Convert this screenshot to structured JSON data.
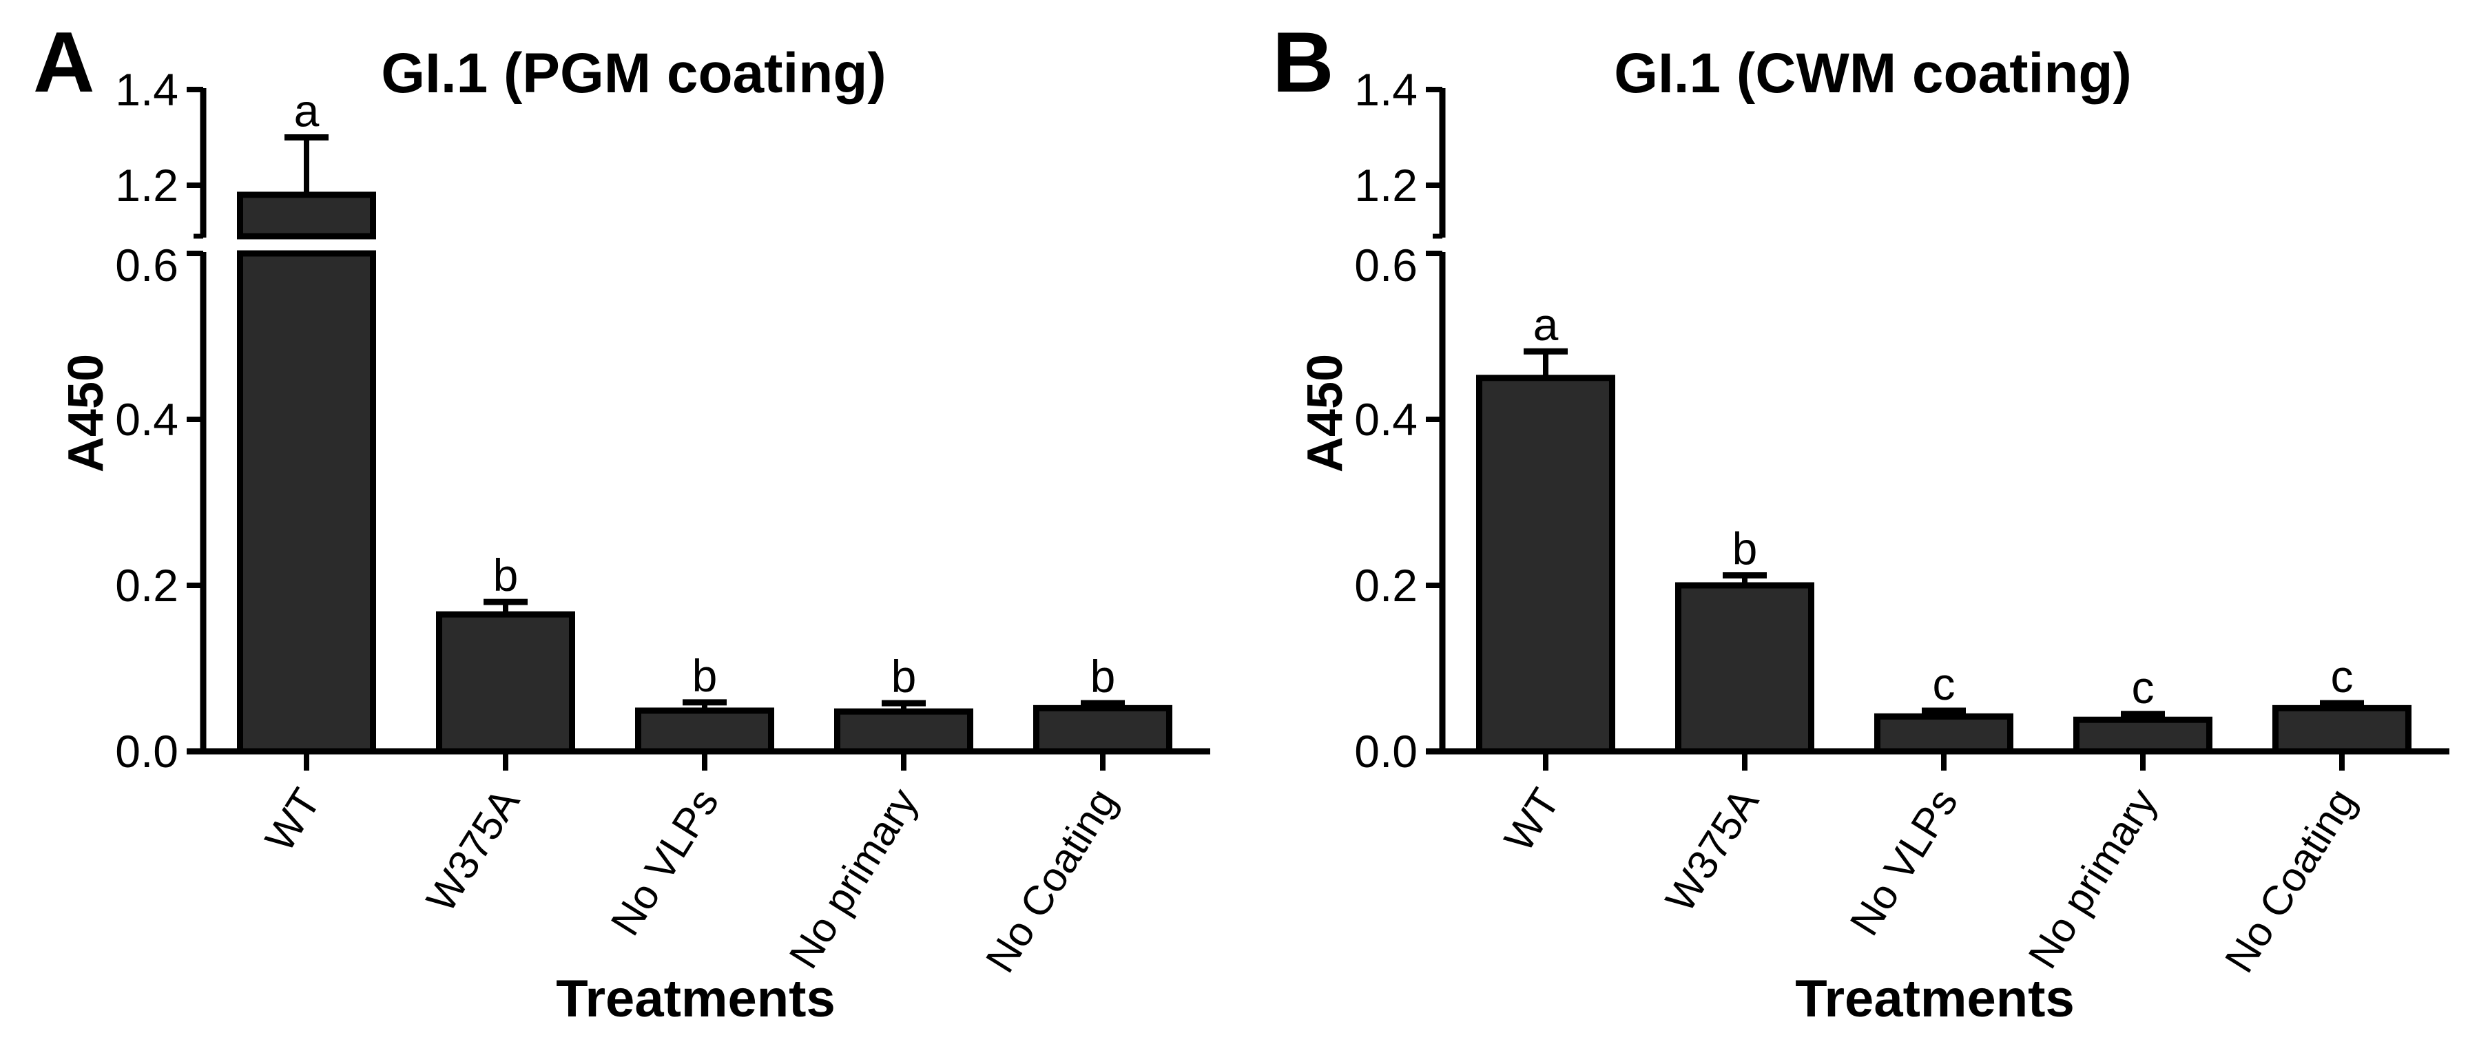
{
  "background_color": "#ffffff",
  "text_color": "#000000",
  "bar_fill_color": "#2b2b2b",
  "bar_stroke_color": "#000000",
  "chart_data": [
    {
      "type": "bar",
      "panel_letter": "A",
      "title": "GI.1 (PGM coating)",
      "ylabel": "A450",
      "xlabel": "Treatments",
      "categories": [
        "WT",
        "W375A",
        "No VLPs",
        "No primary",
        "No Coating"
      ],
      "values": [
        1.18,
        0.165,
        0.049,
        0.048,
        0.052
      ],
      "errors": [
        0.12,
        0.015,
        0.01,
        0.01,
        0.006
      ],
      "sig_letters": [
        "a",
        "b",
        "b",
        "b",
        "b"
      ],
      "ytick_values": [
        0.0,
        0.2,
        0.4,
        0.6,
        1.2,
        1.4
      ],
      "ytick_labels": [
        "0.0",
        "0.2",
        "0.4",
        "0.6",
        "1.2",
        "1.4"
      ],
      "ylim": [
        0,
        1.4
      ],
      "axis_break": {
        "lower_max": 0.6,
        "upper_min": 1.1
      },
      "grid": false,
      "legend": "none",
      "error_bars": "upper only"
    },
    {
      "type": "bar",
      "panel_letter": "B",
      "title": "GI.1 (CWM coating)",
      "ylabel": "A450",
      "xlabel": "Treatments",
      "categories": [
        "WT",
        "W375A",
        "No VLPs",
        "No primary",
        "No Coating"
      ],
      "values": [
        0.45,
        0.2,
        0.042,
        0.038,
        0.052
      ],
      "errors": [
        0.032,
        0.012,
        0.007,
        0.007,
        0.006
      ],
      "sig_letters": [
        "a",
        "b",
        "c",
        "c",
        "c"
      ],
      "ytick_values": [
        0.0,
        0.2,
        0.4,
        0.6,
        1.2,
        1.4
      ],
      "ytick_labels": [
        "0.0",
        "0.2",
        "0.4",
        "0.6",
        "1.2",
        "1.4"
      ],
      "ylim": [
        0,
        1.4
      ],
      "axis_break": {
        "lower_max": 0.6,
        "upper_min": 1.1
      },
      "grid": false,
      "legend": "none",
      "error_bars": "upper only"
    }
  ]
}
